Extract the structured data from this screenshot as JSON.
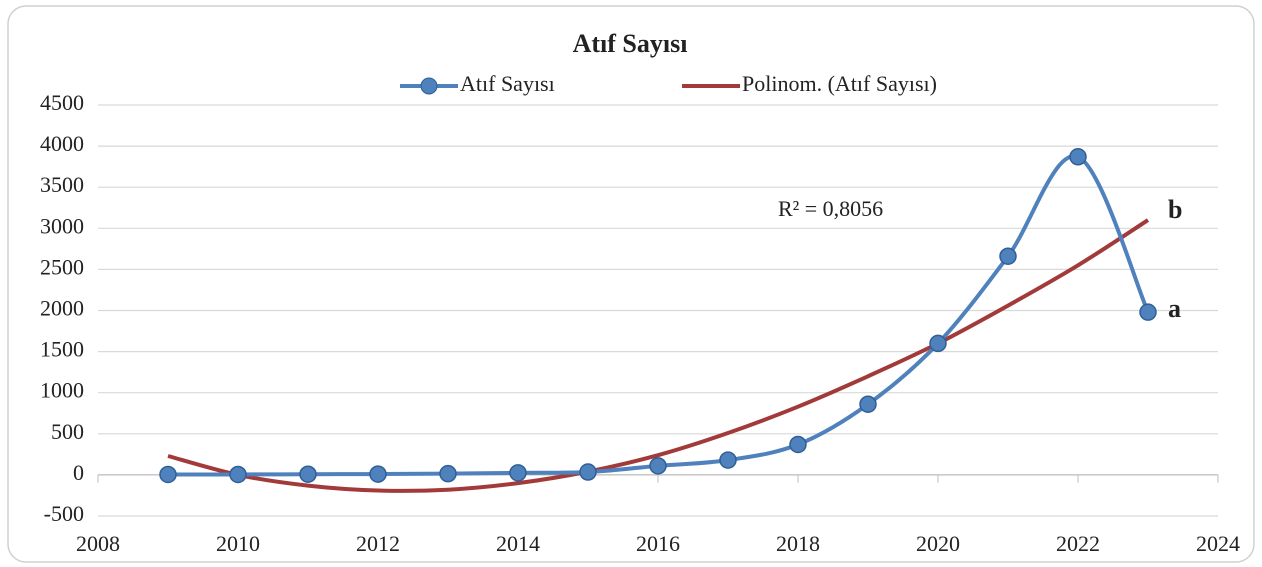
{
  "chart_data": {
    "type": "line",
    "title": "Atıf Sayısı",
    "x": [
      2009,
      2010,
      2011,
      2012,
      2013,
      2014,
      2015,
      2016,
      2017,
      2018,
      2019,
      2020,
      2021,
      2022,
      2023
    ],
    "series": [
      {
        "name": "Atıf Sayısı",
        "color": "#4f81bd",
        "marker": true,
        "smooth": true,
        "values": [
          5,
          5,
          8,
          10,
          15,
          25,
          35,
          110,
          180,
          370,
          860,
          1600,
          2660,
          3870,
          1980
        ]
      },
      {
        "name": "Polinom. (Atıf Sayısı)",
        "color": "#a33a3a",
        "marker": false,
        "smooth": true,
        "values": [
          230,
          0,
          -130,
          -190,
          -180,
          -100,
          40,
          240,
          510,
          830,
          1200,
          1600,
          2060,
          2550,
          3100
        ]
      }
    ],
    "annotations": [
      "R² = 0,8056",
      "b",
      "a"
    ],
    "xlim": [
      2008,
      2024
    ],
    "xticks": [
      2008,
      2010,
      2012,
      2014,
      2016,
      2018,
      2020,
      2022,
      2024
    ],
    "ylim": [
      -500,
      4500
    ],
    "yticks": [
      -500,
      0,
      500,
      1000,
      1500,
      2000,
      2500,
      3000,
      3500,
      4000,
      4500
    ],
    "grid": true
  }
}
